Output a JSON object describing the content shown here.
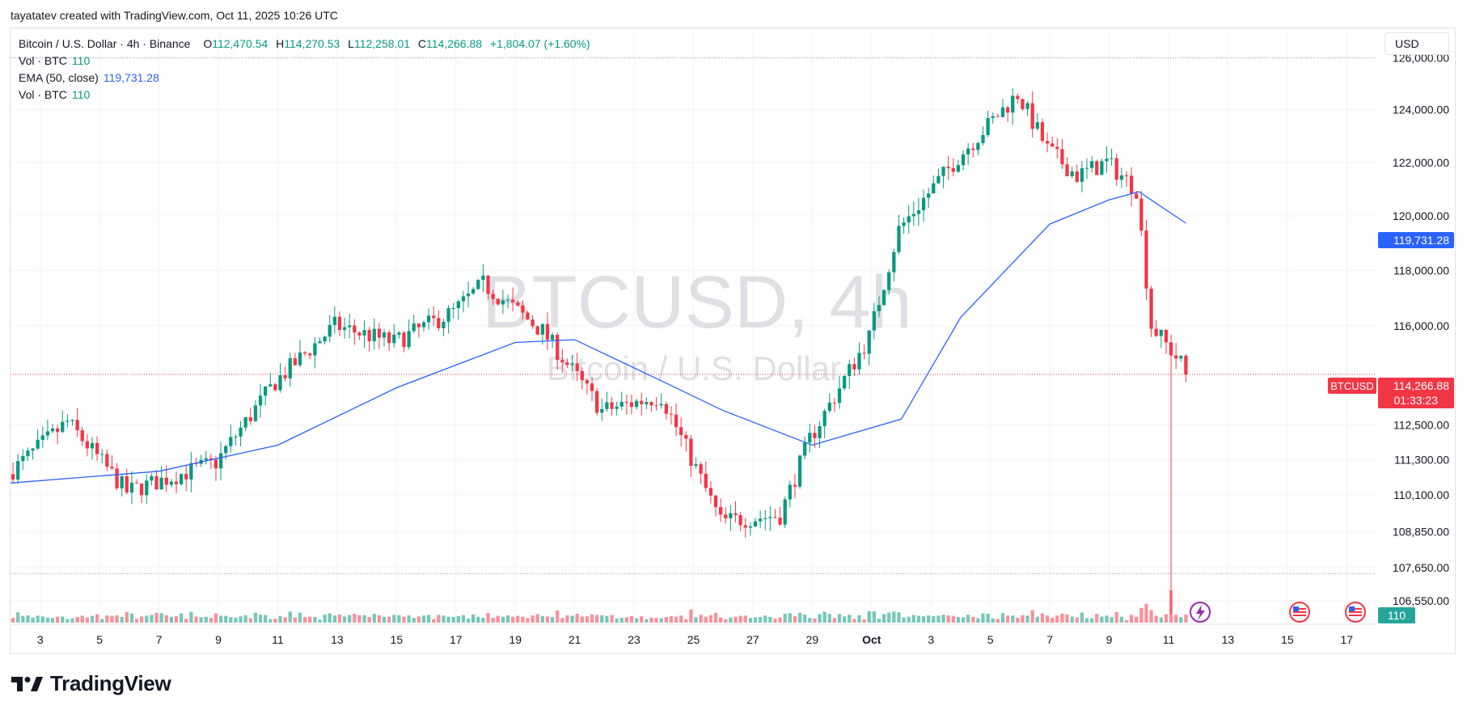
{
  "header": {
    "credit": "tayatatev created with TradingView.com, Oct 11, 2025 10:26 UTC"
  },
  "legend": {
    "symbol": "Bitcoin / U.S. Dollar · 4h · Binance",
    "o_label": "O",
    "o": "112,470.54",
    "h_label": "H",
    "h": "114,270.53",
    "l_label": "L",
    "l": "112,258.01",
    "c_label": "C",
    "c": "114,266.88",
    "change": "+1,804.07 (+1.60%)",
    "vol_label": "Vol · BTC",
    "vol_value": "110",
    "ema_label": "EMA (50, close)",
    "ema_value": "119,731.28",
    "vol2_label": "Vol · BTC",
    "vol2_value": "110"
  },
  "currency": "USD",
  "watermark": {
    "symbol": "BTCUSD, 4h",
    "name": "Bitcoin / U.S. Dollar"
  },
  "price_badges": {
    "ema_value": "119,731.28",
    "symbol_tag": "BTCUSD",
    "last_price": "114,266.88",
    "countdown": "01:33:23",
    "volume": "110"
  },
  "brand": {
    "name": "TradingView"
  },
  "colors": {
    "up": "#089981",
    "down": "#f23645",
    "ema": "#2962ff",
    "grid": "#f0f3fa",
    "text": "#131722"
  },
  "chart_data": {
    "type": "candlestick",
    "title": "Bitcoin / U.S. Dollar · 4h · Binance",
    "interval": "4h",
    "y_scale": "log",
    "ylim": [
      106100,
      127000
    ],
    "y_ticks": [
      {
        "value": 126000,
        "label": "126,000.00"
      },
      {
        "value": 124000,
        "label": "124,000.00"
      },
      {
        "value": 122000,
        "label": "122,000.00"
      },
      {
        "value": 120000,
        "label": "120,000.00"
      },
      {
        "value": 118000,
        "label": "118,000.00"
      },
      {
        "value": 116000,
        "label": "116,000.00"
      },
      {
        "value": 112500,
        "label": "112,500.00"
      },
      {
        "value": 111300,
        "label": "111,300.00"
      },
      {
        "value": 110100,
        "label": "110,100.00"
      },
      {
        "value": 108850,
        "label": "108,850.00"
      },
      {
        "value": 107650,
        "label": "107,650.00"
      },
      {
        "value": 106550,
        "label": "106,550.00"
      }
    ],
    "x_ticks": [
      "3",
      "5",
      "7",
      "9",
      "11",
      "13",
      "15",
      "17",
      "19",
      "21",
      "23",
      "25",
      "27",
      "29",
      "Oct",
      "3",
      "5",
      "7",
      "9",
      "11",
      "13",
      "15",
      "17"
    ],
    "x_range_days": [
      "2025-09-02",
      "2025-10-17"
    ],
    "key_points": [
      {
        "date": "2025-09-02",
        "close": 110800
      },
      {
        "date": "2025-09-04",
        "close": 112600
      },
      {
        "date": "2025-09-06",
        "close": 110200
      },
      {
        "date": "2025-09-09",
        "close": 111200
      },
      {
        "date": "2025-09-11",
        "close": 114000
      },
      {
        "date": "2025-09-13",
        "close": 116000
      },
      {
        "date": "2025-09-15",
        "close": 115400
      },
      {
        "date": "2025-09-17",
        "close": 116500
      },
      {
        "date": "2025-09-18",
        "close": 117500
      },
      {
        "date": "2025-09-20",
        "close": 115800
      },
      {
        "date": "2025-09-22",
        "close": 113000
      },
      {
        "date": "2025-09-24",
        "close": 113500
      },
      {
        "date": "2025-09-26",
        "close": 109200
      },
      {
        "date": "2025-09-28",
        "close": 109400
      },
      {
        "date": "2025-09-29",
        "close": 112000
      },
      {
        "date": "2025-10-01",
        "close": 115600
      },
      {
        "date": "2025-10-02",
        "close": 119500
      },
      {
        "date": "2025-10-04",
        "close": 122200
      },
      {
        "date": "2025-10-06",
        "close": 124600
      },
      {
        "date": "2025-10-07",
        "close": 122500
      },
      {
        "date": "2025-10-08",
        "close": 121500
      },
      {
        "date": "2025-10-09",
        "close": 122000
      },
      {
        "date": "2025-10-10",
        "close": 121000
      },
      {
        "date": "2025-10-10",
        "close": 116000
      },
      {
        "date": "2025-10-11",
        "close": 114266.88
      }
    ],
    "extremes": {
      "high": 126200,
      "crash_low": 103000
    },
    "ema": {
      "name": "EMA (50, close)",
      "last": 119731.28
    },
    "ema_key_points": [
      {
        "date": "2025-09-02",
        "value": 110500
      },
      {
        "date": "2025-09-07",
        "value": 110900
      },
      {
        "date": "2025-09-11",
        "value": 111800
      },
      {
        "date": "2025-09-15",
        "value": 113800
      },
      {
        "date": "2025-09-19",
        "value": 115400
      },
      {
        "date": "2025-09-21",
        "value": 115500
      },
      {
        "date": "2025-09-24",
        "value": 114000
      },
      {
        "date": "2025-09-26",
        "value": 113000
      },
      {
        "date": "2025-09-29",
        "value": 111800
      },
      {
        "date": "2025-10-02",
        "value": 112700
      },
      {
        "date": "2025-10-04",
        "value": 116300
      },
      {
        "date": "2025-10-07",
        "value": 119700
      },
      {
        "date": "2025-10-09",
        "value": 120600
      },
      {
        "date": "2025-10-10",
        "value": 120900
      },
      {
        "date": "2025-10-11",
        "value": 119731.28
      }
    ],
    "volume": {
      "label": "Vol · BTC",
      "last": 110
    },
    "reference_lines": [
      {
        "value": 126000
      },
      {
        "value": 114266.88
      },
      {
        "value": 107450
      }
    ],
    "event_markers": [
      {
        "date": "2025-10-11",
        "icon": "lightning-icon"
      },
      {
        "date": "2025-10-14",
        "icon": "us-flag-icon"
      },
      {
        "date": "2025-10-16",
        "icon": "us-flag-icon"
      }
    ]
  }
}
